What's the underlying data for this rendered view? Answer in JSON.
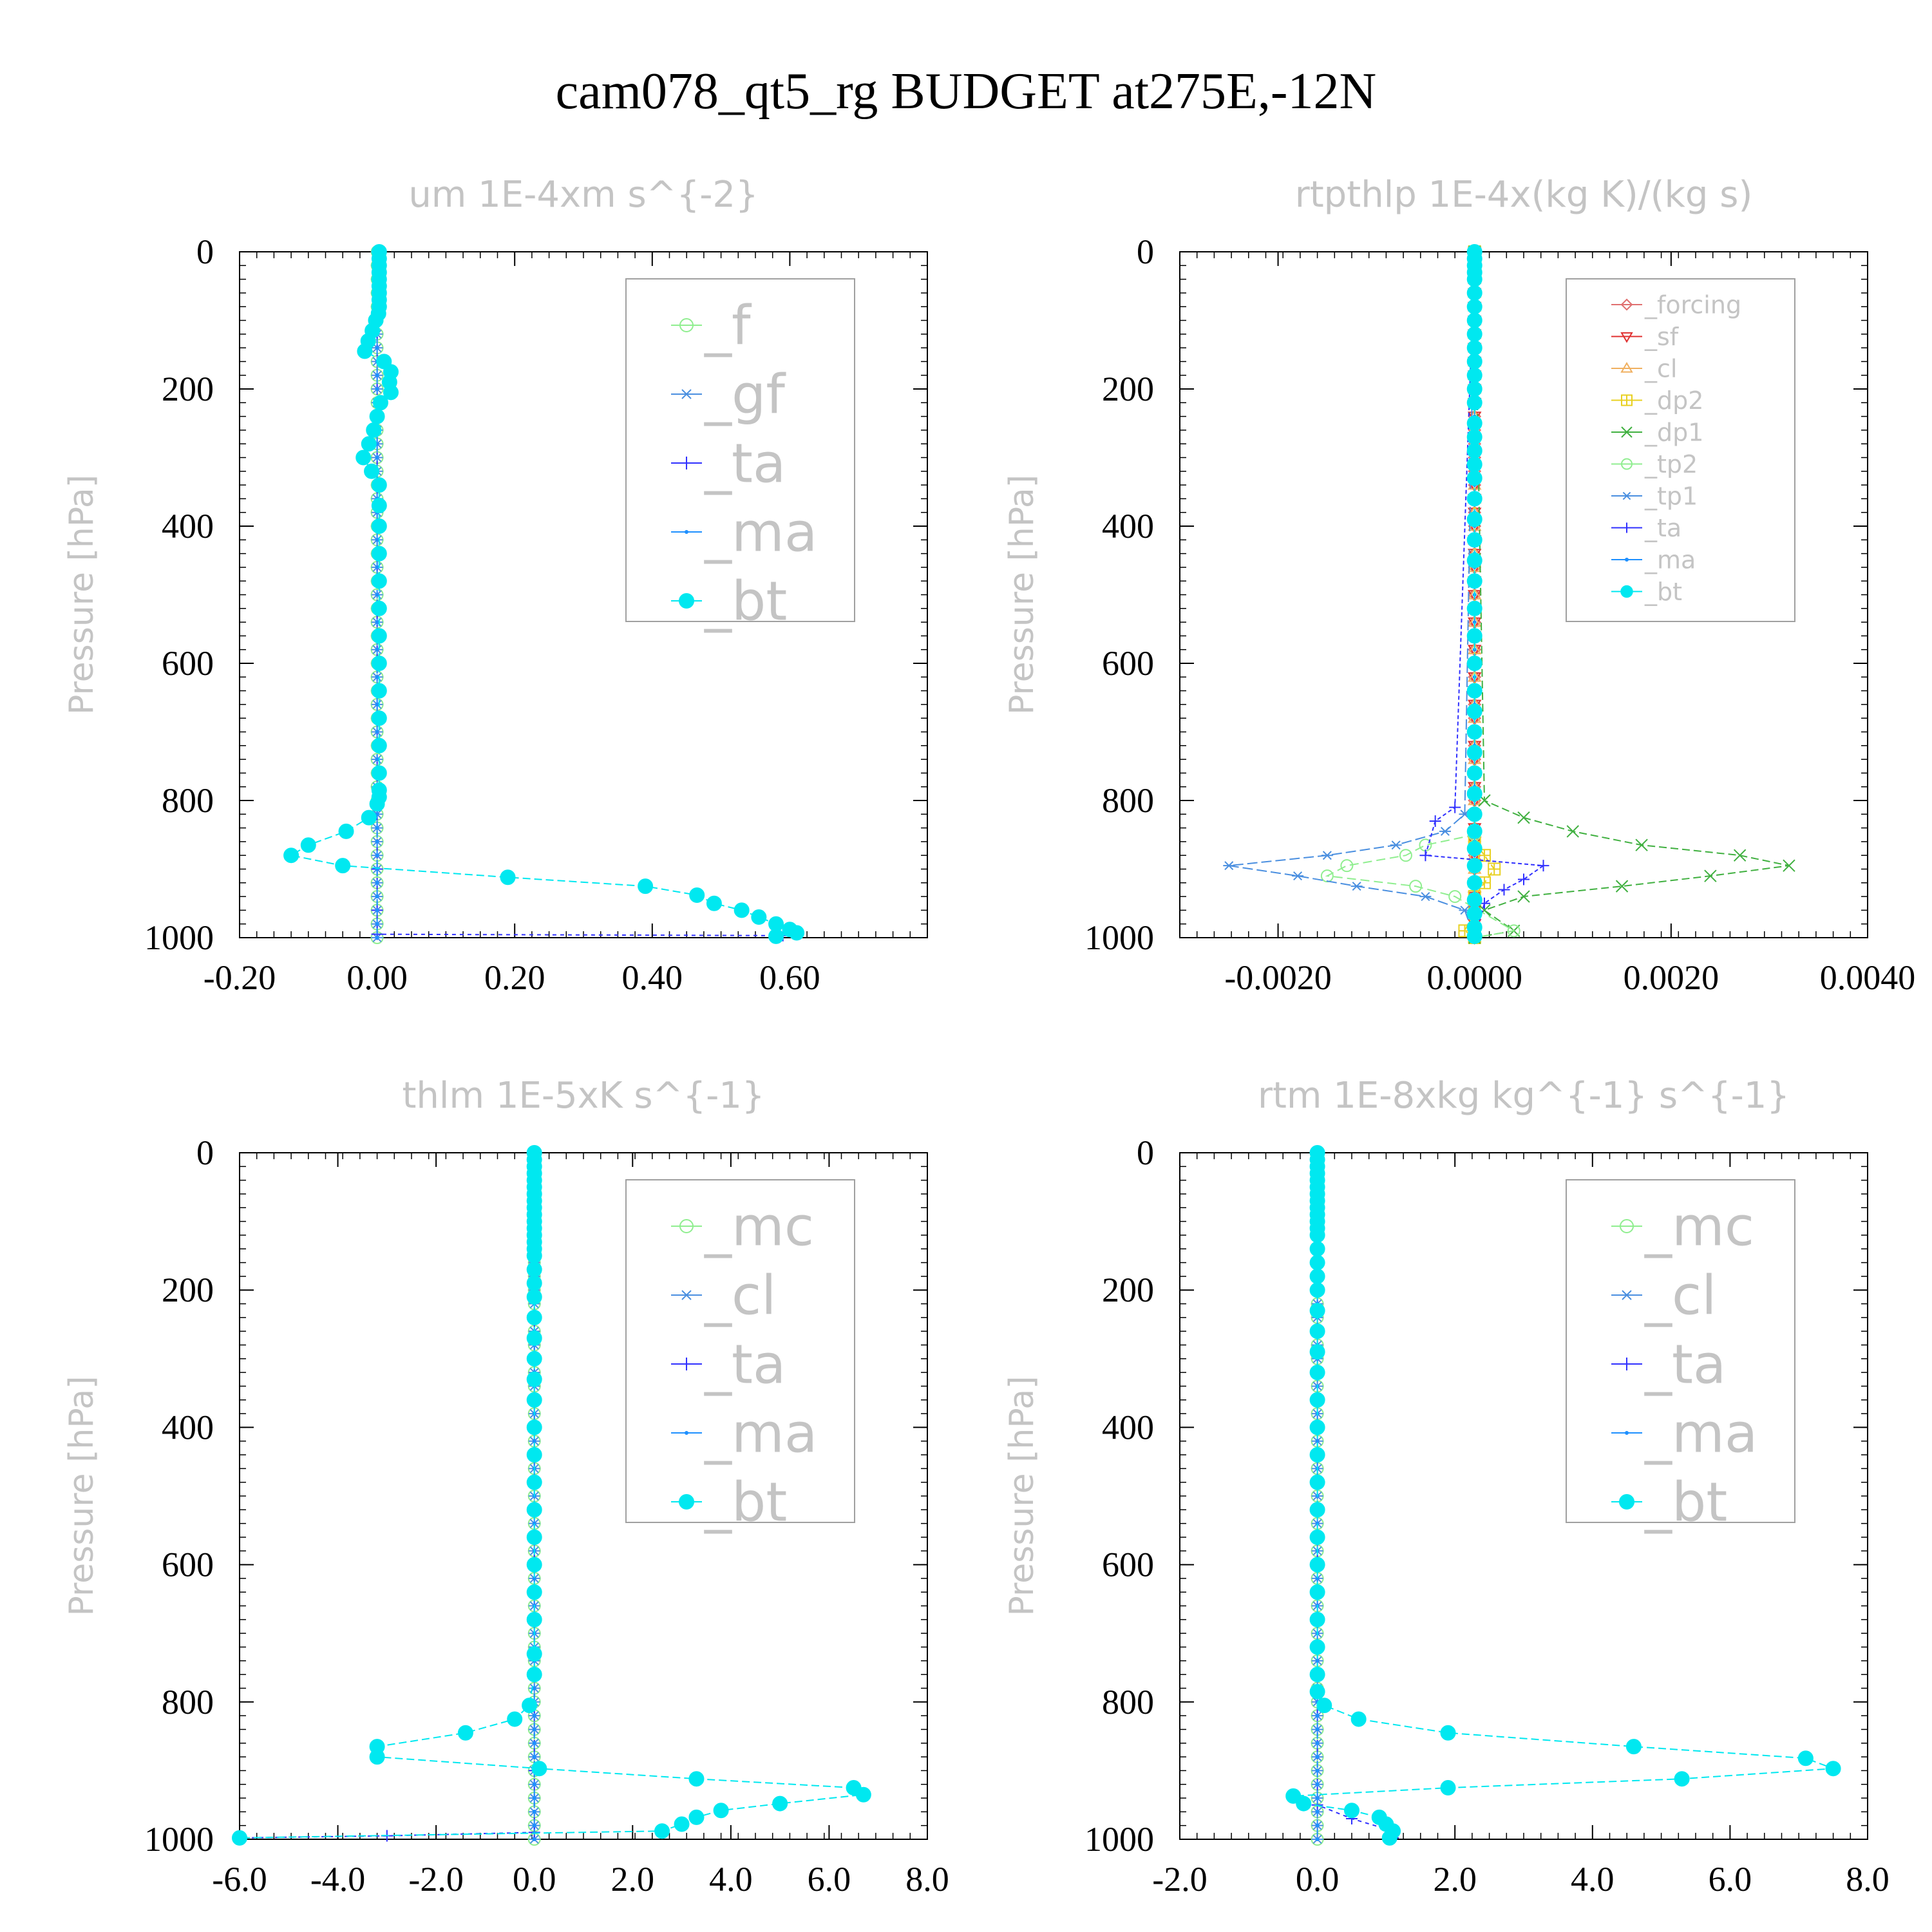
{
  "figure": {
    "title": "cam078_qt5_rg  BUDGET at275E,-12N"
  },
  "chart_data": [
    {
      "type": "line",
      "title": "um  1E-4xm s^{-2}",
      "ylabel": "Pressure [hPa]",
      "xlabel": "",
      "xlim": [
        -0.2,
        0.8
      ],
      "ylim": [
        1000,
        0
      ],
      "y_inverted": true,
      "xticks": [
        -0.2,
        0.0,
        0.2,
        0.4,
        0.6
      ],
      "xtick_labels": [
        "-0.20",
        "0.00",
        "0.20",
        "0.40",
        "0.60"
      ],
      "yticks": [
        0,
        200,
        400,
        600,
        800,
        1000
      ],
      "ytick_labels": [
        "0",
        "200",
        "400",
        "600",
        "800",
        "1000"
      ],
      "legend_position": "top-right",
      "legend_size": "large",
      "series": [
        {
          "name": "_f",
          "color": "#90ee90",
          "marker": "circle-open",
          "x": [
            0,
            0
          ],
          "y": [
            0,
            1000
          ]
        },
        {
          "name": "_gf",
          "color": "#4a8fe0",
          "marker": "asterisk",
          "x": [
            0,
            0
          ],
          "y": [
            0,
            1000
          ]
        },
        {
          "name": "_ta",
          "color": "#3030ff",
          "marker": "plus",
          "x": [
            0,
            0,
            0,
            0,
            0,
            0.59
          ],
          "y": [
            0,
            800,
            900,
            960,
            995,
            997
          ]
        },
        {
          "name": "_ma",
          "color": "#1e90ff",
          "marker": "dot",
          "x": [
            0,
            0
          ],
          "y": [
            0,
            1000
          ]
        },
        {
          "name": "_bt",
          "color": "#00e8f0",
          "marker": "filled-circle",
          "x": [
            0.003,
            0.003,
            0.003,
            0.003,
            0.003,
            0.003,
            0.003,
            0.003,
            0.003,
            0.002,
            -0.002,
            -0.007,
            -0.013,
            -0.018,
            0.01,
            0.02,
            0.018,
            0.02,
            0.005,
            0.0,
            -0.005,
            -0.012,
            -0.02,
            -0.008,
            0.003,
            0.003,
            0.003,
            0.003,
            0.003,
            0.003,
            0.003,
            0.003,
            0.003,
            0.003,
            0.003,
            0.003,
            0.003,
            0.003,
            0.0,
            -0.012,
            -0.045,
            -0.1,
            -0.125,
            -0.05,
            0.19,
            0.39,
            0.465,
            0.49,
            0.53,
            0.555,
            0.58,
            0.6,
            0.61,
            0.58
          ],
          "y": [
            0,
            10,
            20,
            30,
            40,
            50,
            60,
            70,
            80,
            90,
            100,
            115,
            130,
            145,
            160,
            175,
            190,
            205,
            220,
            240,
            260,
            280,
            300,
            320,
            340,
            370,
            400,
            440,
            480,
            520,
            560,
            600,
            640,
            680,
            720,
            760,
            785,
            795,
            805,
            825,
            845,
            865,
            880,
            895,
            912,
            925,
            938,
            950,
            960,
            970,
            980,
            988,
            993,
            998
          ]
        }
      ]
    },
    {
      "type": "line",
      "title": "rtpthlp  1E-4x(kg K)/(kg s)",
      "ylabel": "Pressure [hPa]",
      "xlabel": "",
      "xlim": [
        -0.003,
        0.004
      ],
      "ylim": [
        1000,
        0
      ],
      "y_inverted": true,
      "xticks": [
        -0.002,
        0.0,
        0.002,
        0.004
      ],
      "xtick_labels": [
        "-0.0020",
        "0.0000",
        "0.0020",
        "0.0040"
      ],
      "yticks": [
        0,
        200,
        400,
        600,
        800,
        1000
      ],
      "ytick_labels": [
        "0",
        "200",
        "400",
        "600",
        "800",
        "1000"
      ],
      "legend_position": "top-right",
      "legend_size": "small",
      "series": [
        {
          "name": "_forcing",
          "color": "#e07070",
          "marker": "diamond-open",
          "x": [
            0,
            0
          ],
          "y": [
            0,
            1000
          ]
        },
        {
          "name": "_sf",
          "color": "#e03030",
          "marker": "triangle-down",
          "x": [
            0,
            0
          ],
          "y": [
            0,
            1000
          ]
        },
        {
          "name": "_cl",
          "color": "#f0b060",
          "marker": "triangle-up",
          "x": [
            0,
            0
          ],
          "y": [
            0,
            1000
          ]
        },
        {
          "name": "_dp2",
          "color": "#e8d020",
          "marker": "square-plus",
          "x": [
            0,
            0,
            0.0001,
            0.0002,
            0.0001,
            0,
            0,
            -0.0001,
            0
          ],
          "y": [
            0,
            860,
            880,
            900,
            920,
            940,
            960,
            990,
            1000
          ]
        },
        {
          "name": "_dp1",
          "color": "#40b040",
          "marker": "cross",
          "x": [
            0,
            0.0001,
            0.0005,
            0.001,
            0.0017,
            0.0027,
            0.0032,
            0.0024,
            0.0015,
            0.0005,
            0.0001,
            0.0004,
            0
          ],
          "y": [
            0,
            800,
            825,
            845,
            865,
            880,
            895,
            910,
            925,
            940,
            960,
            990,
            1000
          ]
        },
        {
          "name": "_tp2",
          "color": "#90ee90",
          "marker": "circle-open",
          "x": [
            0,
            0,
            -0.0005,
            -0.0007,
            -0.0013,
            -0.0015,
            -0.0006,
            -0.0002,
            0.0004,
            0
          ],
          "y": [
            0,
            850,
            865,
            880,
            895,
            910,
            925,
            940,
            990,
            1000
          ]
        },
        {
          "name": "_tp1",
          "color": "#4a8fe0",
          "marker": "asterisk",
          "x": [
            0,
            -0.0001,
            -0.0003,
            -0.0008,
            -0.0015,
            -0.0025,
            -0.0018,
            -0.0012,
            -0.0005,
            -0.0001,
            0
          ],
          "y": [
            0,
            820,
            845,
            865,
            880,
            895,
            910,
            925,
            940,
            960,
            1000
          ]
        },
        {
          "name": "_ta",
          "color": "#3030ff",
          "marker": "plus",
          "x": [
            0,
            -0.0002,
            -0.0004,
            -0.0005,
            0.0007,
            0.0005,
            0.0003,
            0.0001,
            0
          ],
          "y": [
            0,
            810,
            830,
            880,
            895,
            915,
            930,
            950,
            1000
          ]
        },
        {
          "name": "_ma",
          "color": "#1e90ff",
          "marker": "dot",
          "x": [
            0,
            0
          ],
          "y": [
            0,
            1000
          ]
        },
        {
          "name": "_bt",
          "color": "#00e8f0",
          "marker": "filled-circle",
          "x": [
            0,
            0,
            0,
            0,
            0,
            0,
            0,
            0,
            0,
            0,
            0,
            0,
            0,
            0,
            0,
            0,
            0,
            0,
            0,
            0,
            0,
            0,
            0,
            0,
            0,
            0,
            0,
            0,
            0,
            0,
            0,
            0,
            0,
            0,
            0,
            0,
            0,
            0,
            0,
            0,
            0,
            0
          ],
          "y": [
            0,
            10,
            20,
            30,
            40,
            60,
            80,
            100,
            120,
            140,
            160,
            180,
            200,
            220,
            250,
            270,
            290,
            310,
            330,
            360,
            390,
            420,
            450,
            480,
            520,
            560,
            600,
            640,
            670,
            700,
            730,
            760,
            790,
            820,
            845,
            870,
            895,
            920,
            945,
            965,
            985,
            998
          ]
        }
      ]
    },
    {
      "type": "line",
      "title": "thlm  1E-5xK s^{-1}",
      "ylabel": "Pressure [hPa]",
      "xlabel": "",
      "xlim": [
        -6.0,
        8.0
      ],
      "ylim": [
        1000,
        0
      ],
      "y_inverted": true,
      "xticks": [
        -6,
        -4,
        -2,
        0,
        2,
        4,
        6,
        8
      ],
      "xtick_labels": [
        "-6.0",
        "-4.0",
        "-2.0",
        "0.0",
        "2.0",
        "4.0",
        "6.0",
        "8.0"
      ],
      "yticks": [
        0,
        200,
        400,
        600,
        800,
        1000
      ],
      "ytick_labels": [
        "0",
        "200",
        "400",
        "600",
        "800",
        "1000"
      ],
      "legend_position": "top-right",
      "legend_size": "large",
      "series": [
        {
          "name": "_mc",
          "color": "#90ee90",
          "marker": "circle-open",
          "x": [
            0,
            0
          ],
          "y": [
            0,
            1000
          ]
        },
        {
          "name": "_cl",
          "color": "#4a8fe0",
          "marker": "asterisk",
          "x": [
            0,
            0
          ],
          "y": [
            0,
            1000
          ]
        },
        {
          "name": "_ta",
          "color": "#3030ff",
          "marker": "plus",
          "x": [
            0,
            0,
            0,
            -3,
            -6
          ],
          "y": [
            0,
            900,
            990,
            995,
            998
          ]
        },
        {
          "name": "_ma",
          "color": "#1e90ff",
          "marker": "dot",
          "x": [
            0,
            0
          ],
          "y": [
            0,
            1000
          ]
        },
        {
          "name": "_bt",
          "color": "#00e8f0",
          "marker": "filled-circle",
          "x": [
            0,
            0,
            0,
            0,
            0,
            0,
            0,
            0,
            0,
            0,
            0,
            0,
            0,
            0,
            0,
            0,
            0,
            0,
            0,
            0,
            0,
            0,
            0,
            0,
            0,
            0,
            0,
            0,
            0,
            0,
            0,
            0,
            0,
            0,
            -0.1,
            -0.4,
            -1.4,
            -3.2,
            -3.2,
            0.1,
            3.3,
            6.5,
            6.7,
            5.0,
            3.8,
            3.3,
            3.0,
            2.6,
            -6.0
          ],
          "y": [
            0,
            10,
            20,
            30,
            40,
            50,
            60,
            70,
            80,
            90,
            100,
            110,
            120,
            130,
            140,
            150,
            170,
            190,
            210,
            240,
            270,
            300,
            330,
            360,
            400,
            440,
            480,
            520,
            560,
            600,
            640,
            680,
            730,
            760,
            805,
            825,
            845,
            865,
            880,
            897,
            912,
            925,
            935,
            948,
            958,
            968,
            978,
            988,
            998
          ]
        }
      ]
    },
    {
      "type": "line",
      "title": "rtm  1E-8xkg kg^{-1} s^{-1}",
      "ylabel": "Pressure [hPa]",
      "xlabel": "",
      "xlim": [
        -2.0,
        8.0
      ],
      "ylim": [
        1000,
        0
      ],
      "y_inverted": true,
      "xticks": [
        -2,
        0,
        2,
        4,
        6,
        8
      ],
      "xtick_labels": [
        "-2.0",
        "0.0",
        "2.0",
        "4.0",
        "6.0",
        "8.0"
      ],
      "yticks": [
        0,
        200,
        400,
        600,
        800,
        1000
      ],
      "ytick_labels": [
        "0",
        "200",
        "400",
        "600",
        "800",
        "1000"
      ],
      "legend_position": "top-right",
      "legend_size": "large",
      "series": [
        {
          "name": "_mc",
          "color": "#90ee90",
          "marker": "circle-open",
          "x": [
            0,
            0
          ],
          "y": [
            0,
            1000
          ]
        },
        {
          "name": "_cl",
          "color": "#4a8fe0",
          "marker": "asterisk",
          "x": [
            0,
            0
          ],
          "y": [
            0,
            1000
          ]
        },
        {
          "name": "_ta",
          "color": "#3030ff",
          "marker": "plus",
          "x": [
            0,
            0,
            0.5,
            1.0,
            1.1
          ],
          "y": [
            0,
            950,
            970,
            985,
            998
          ]
        },
        {
          "name": "_ma",
          "color": "#1e90ff",
          "marker": "dot",
          "x": [
            0,
            0
          ],
          "y": [
            0,
            1000
          ]
        },
        {
          "name": "_bt",
          "color": "#00e8f0",
          "marker": "filled-circle",
          "x": [
            0,
            0,
            0,
            0,
            0,
            0,
            0,
            0,
            0,
            0,
            0,
            0,
            0,
            0,
            0,
            0,
            0,
            0,
            0,
            0,
            0,
            0,
            0,
            0,
            0,
            0,
            0,
            0,
            0,
            0,
            0,
            0,
            0,
            0.1,
            0.6,
            1.9,
            4.6,
            7.1,
            7.5,
            5.3,
            1.9,
            -0.35,
            -0.2,
            0.5,
            0.9,
            1.0,
            1.1,
            1.05
          ],
          "y": [
            0,
            10,
            20,
            30,
            40,
            50,
            60,
            70,
            80,
            90,
            100,
            110,
            120,
            140,
            160,
            180,
            200,
            230,
            260,
            290,
            320,
            360,
            400,
            440,
            480,
            520,
            560,
            600,
            640,
            680,
            720,
            760,
            785,
            805,
            825,
            845,
            865,
            882,
            897,
            912,
            925,
            937,
            948,
            958,
            968,
            978,
            988,
            998
          ]
        }
      ]
    }
  ]
}
